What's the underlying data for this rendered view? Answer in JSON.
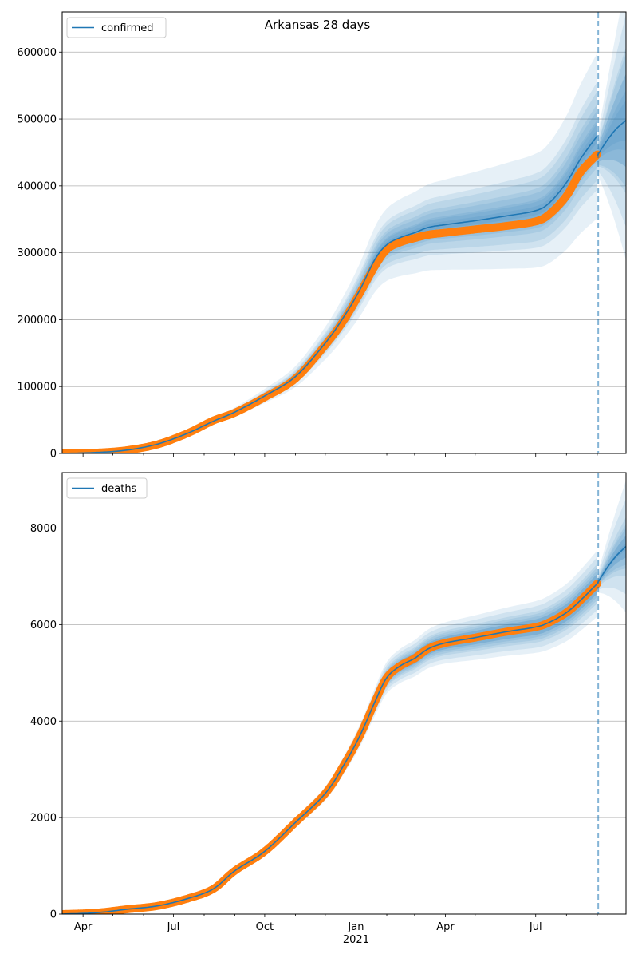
{
  "chart_data": {
    "type": "line",
    "title": "Arkansas 28 days",
    "x_ticks": [
      {
        "date": "2020-04-01",
        "label": "Apr",
        "sub": ""
      },
      {
        "date": "2020-07-01",
        "label": "Jul",
        "sub": ""
      },
      {
        "date": "2020-10-01",
        "label": "Oct",
        "sub": ""
      },
      {
        "date": "2021-01-01",
        "label": "Jan",
        "sub": "2021"
      },
      {
        "date": "2021-04-01",
        "label": "Apr",
        "sub": ""
      },
      {
        "date": "2021-07-01",
        "label": "Jul",
        "sub": ""
      }
    ],
    "xlim": [
      "2020-03-11",
      "2021-09-30"
    ],
    "forecast_start": "2021-09-02",
    "colors": {
      "model": "#1f77b4",
      "observed": "#ff7f0e",
      "band": "#1f77b4",
      "vline": "#1f77b4",
      "grid": "#b0b0b0"
    },
    "panels": [
      {
        "legend": "confirmed",
        "legend_position": "upper-left",
        "ylim": [
          0,
          660000
        ],
        "yticks": [
          0,
          100000,
          200000,
          300000,
          400000,
          500000,
          600000
        ],
        "grid": "y",
        "model_curve": [
          [
            "2020-03-11",
            0
          ],
          [
            "2020-04-15",
            1500
          ],
          [
            "2020-05-15",
            5000
          ],
          [
            "2020-06-15",
            14000
          ],
          [
            "2020-07-15",
            30000
          ],
          [
            "2020-08-10",
            48000
          ],
          [
            "2020-09-01",
            62000
          ],
          [
            "2020-10-01",
            86000
          ],
          [
            "2020-11-01",
            115000
          ],
          [
            "2020-12-01",
            165000
          ],
          [
            "2020-12-20",
            205000
          ],
          [
            "2021-01-05",
            245000
          ],
          [
            "2021-01-20",
            290000
          ],
          [
            "2021-02-01",
            312000
          ],
          [
            "2021-02-15",
            323000
          ],
          [
            "2021-03-01",
            330000
          ],
          [
            "2021-03-15",
            338000
          ],
          [
            "2021-04-01",
            342000
          ],
          [
            "2021-05-01",
            348000
          ],
          [
            "2021-06-01",
            355000
          ],
          [
            "2021-07-01",
            363000
          ],
          [
            "2021-07-15",
            375000
          ],
          [
            "2021-08-01",
            405000
          ],
          [
            "2021-08-15",
            440000
          ],
          [
            "2021-09-01",
            475000
          ]
        ],
        "forecast_curve": [
          [
            "2021-09-01",
            445000
          ],
          [
            "2021-09-10",
            466000
          ],
          [
            "2021-09-20",
            485000
          ],
          [
            "2021-09-30",
            498000
          ]
        ],
        "bands": [
          {
            "spread": [
              0.04,
              0.1,
              0.17,
              0.26
            ],
            "forecast_spread": [
              0.14,
              0.22,
              0.32,
              0.42
            ]
          },
          {
            "spread": [
              0.02,
              0.05,
              0.08,
              0.14
            ],
            "forecast_spread": [
              0.06,
              0.09,
              0.14,
              0.2
            ]
          }
        ],
        "observed": [
          [
            "2020-03-11",
            0
          ],
          [
            "2020-04-15",
            1200
          ],
          [
            "2020-05-15",
            4800
          ],
          [
            "2020-06-15",
            13500
          ],
          [
            "2020-07-15",
            30000
          ],
          [
            "2020-08-10",
            49000
          ],
          [
            "2020-09-01",
            61000
          ],
          [
            "2020-10-01",
            84000
          ],
          [
            "2020-11-01",
            112000
          ],
          [
            "2020-12-01",
            162000
          ],
          [
            "2020-12-20",
            200000
          ],
          [
            "2021-01-05",
            240000
          ],
          [
            "2021-01-20",
            280000
          ],
          [
            "2021-02-01",
            305000
          ],
          [
            "2021-02-15",
            316000
          ],
          [
            "2021-03-01",
            322000
          ],
          [
            "2021-03-15",
            327000
          ],
          [
            "2021-04-01",
            330000
          ],
          [
            "2021-05-01",
            335000
          ],
          [
            "2021-06-01",
            340000
          ],
          [
            "2021-07-01",
            347000
          ],
          [
            "2021-07-15",
            358000
          ],
          [
            "2021-08-01",
            385000
          ],
          [
            "2021-08-15",
            420000
          ],
          [
            "2021-09-01",
            447000
          ]
        ]
      },
      {
        "legend": "deaths",
        "legend_position": "upper-left",
        "ylim": [
          0,
          9150
        ],
        "yticks": [
          0,
          2000,
          4000,
          6000,
          8000
        ],
        "grid": "y",
        "model_curve": [
          [
            "2020-03-11",
            0
          ],
          [
            "2020-04-15",
            30
          ],
          [
            "2020-05-15",
            100
          ],
          [
            "2020-06-15",
            170
          ],
          [
            "2020-07-15",
            320
          ],
          [
            "2020-08-10",
            520
          ],
          [
            "2020-09-01",
            900
          ],
          [
            "2020-10-01",
            1300
          ],
          [
            "2020-11-01",
            1900
          ],
          [
            "2020-12-01",
            2500
          ],
          [
            "2020-12-20",
            3100
          ],
          [
            "2021-01-05",
            3700
          ],
          [
            "2021-01-20",
            4400
          ],
          [
            "2021-02-01",
            4900
          ],
          [
            "2021-02-15",
            5150
          ],
          [
            "2021-03-01",
            5300
          ],
          [
            "2021-03-15",
            5500
          ],
          [
            "2021-04-01",
            5620
          ],
          [
            "2021-05-01",
            5730
          ],
          [
            "2021-06-01",
            5850
          ],
          [
            "2021-07-01",
            5950
          ],
          [
            "2021-07-15",
            6050
          ],
          [
            "2021-08-01",
            6250
          ],
          [
            "2021-08-15",
            6500
          ],
          [
            "2021-09-01",
            6850
          ]
        ],
        "forecast_curve": [
          [
            "2021-09-01",
            6850
          ],
          [
            "2021-09-10",
            7150
          ],
          [
            "2021-09-20",
            7420
          ],
          [
            "2021-09-30",
            7620
          ]
        ],
        "bands": [
          {
            "spread": [
              0.03,
              0.06,
              0.08,
              0.1
            ],
            "forecast_spread": [
              0.03,
              0.08,
              0.13,
              0.18
            ]
          },
          {
            "spread": [
              0.015,
              0.03,
              0.04,
              0.05
            ],
            "forecast_spread": [
              0.01,
              0.03,
              0.05,
              0.06
            ]
          }
        ],
        "observed": [
          [
            "2020-03-11",
            0
          ],
          [
            "2020-04-15",
            30
          ],
          [
            "2020-05-15",
            100
          ],
          [
            "2020-06-15",
            170
          ],
          [
            "2020-07-15",
            320
          ],
          [
            "2020-08-10",
            520
          ],
          [
            "2020-09-01",
            900
          ],
          [
            "2020-10-01",
            1300
          ],
          [
            "2020-11-01",
            1900
          ],
          [
            "2020-12-01",
            2500
          ],
          [
            "2020-12-20",
            3100
          ],
          [
            "2021-01-05",
            3700
          ],
          [
            "2021-01-20",
            4400
          ],
          [
            "2021-02-01",
            4900
          ],
          [
            "2021-02-15",
            5150
          ],
          [
            "2021-03-01",
            5300
          ],
          [
            "2021-03-15",
            5500
          ],
          [
            "2021-04-01",
            5620
          ],
          [
            "2021-05-01",
            5730
          ],
          [
            "2021-06-01",
            5850
          ],
          [
            "2021-07-01",
            5950
          ],
          [
            "2021-07-15",
            6050
          ],
          [
            "2021-08-01",
            6250
          ],
          [
            "2021-08-15",
            6500
          ],
          [
            "2021-09-01",
            6850
          ]
        ]
      }
    ]
  }
}
